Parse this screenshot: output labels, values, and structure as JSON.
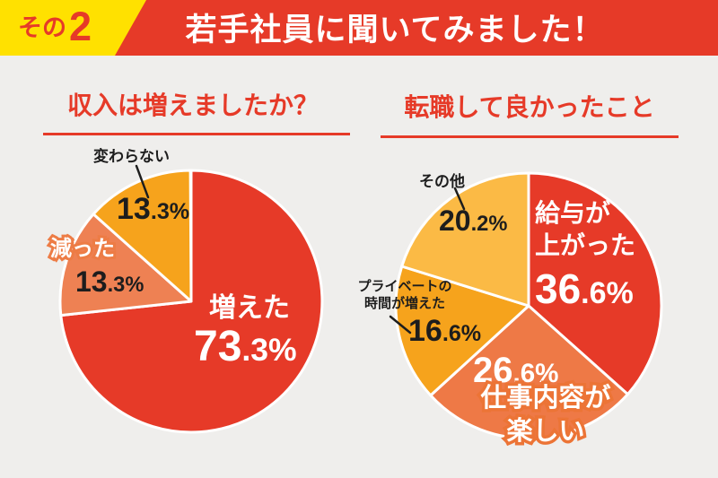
{
  "header": {
    "badge_prefix": "その",
    "badge_number": "2",
    "title": "若手社員に聞いてみました！"
  },
  "colors": {
    "accent_red": "#e63a28",
    "badge_yellow": "#ffe100",
    "background": "#efeeec",
    "pointer_line": "#1d1d1d"
  },
  "chart_data": [
    {
      "type": "pie",
      "title": "収入は増えましたか？",
      "unit": "%",
      "start_angle_deg": 0,
      "direction": "clockwise",
      "legend_position": "none",
      "slices": [
        {
          "label": "増えた",
          "value": 73.3,
          "color": "#e63a28"
        },
        {
          "label": "減った",
          "value": 13.3,
          "color": "#ee8153"
        },
        {
          "label": "変わらない",
          "value": 13.3,
          "color": "#f6a31c"
        }
      ]
    },
    {
      "type": "pie",
      "title": "転職して良かったこと",
      "unit": "%",
      "start_angle_deg": 0,
      "direction": "clockwise",
      "legend_position": "none",
      "slices": [
        {
          "label": "給与が上がった",
          "label_lines": [
            "給与が",
            "上がった"
          ],
          "value": 36.6,
          "color": "#e63a28"
        },
        {
          "label": "仕事内容が楽しい",
          "label_lines": [
            "仕事内容が",
            "楽しい"
          ],
          "value": 26.6,
          "color": "#ee7946"
        },
        {
          "label": "プライベートの時間が増えた",
          "label_lines": [
            "プライベートの",
            "時間が増えた"
          ],
          "value": 16.6,
          "color": "#f6a31c"
        },
        {
          "label": "その他",
          "value": 20.2,
          "color": "#fbba45"
        }
      ]
    }
  ]
}
